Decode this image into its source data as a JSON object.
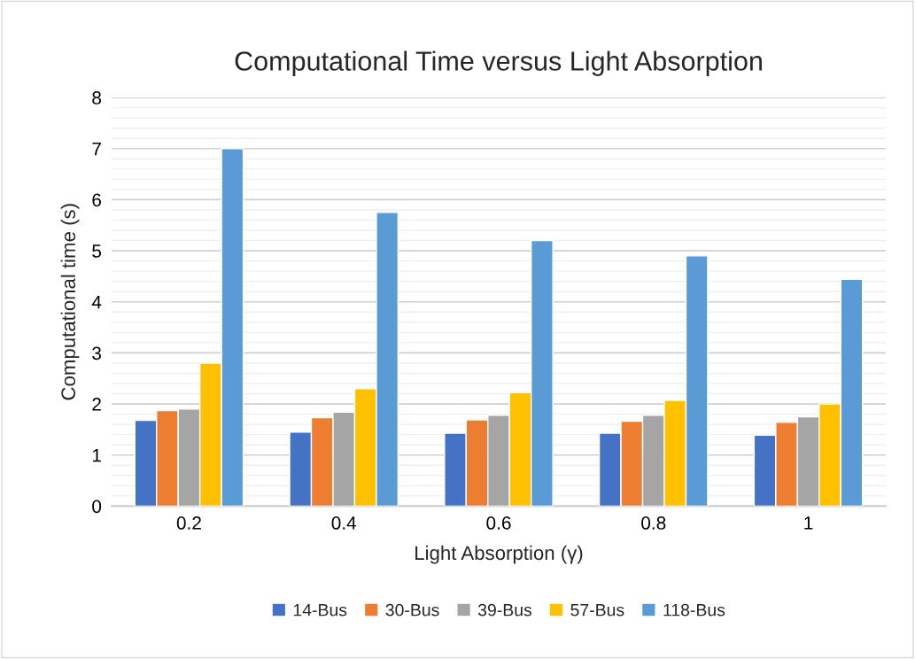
{
  "chart_data": {
    "type": "bar",
    "title": "Computational Time versus Light Absorption",
    "xlabel": "Light Absorption (γ)",
    "ylabel": "Computational time (s)",
    "categories": [
      "0.2",
      "0.4",
      "0.6",
      "0.8",
      "1"
    ],
    "series": [
      {
        "name": "14-Bus",
        "color": "#4472c4",
        "values": [
          1.68,
          1.45,
          1.43,
          1.43,
          1.39
        ]
      },
      {
        "name": "30-Bus",
        "color": "#ed7d31",
        "values": [
          1.87,
          1.73,
          1.69,
          1.66,
          1.64
        ]
      },
      {
        "name": "39-Bus",
        "color": "#a5a5a5",
        "values": [
          1.9,
          1.84,
          1.78,
          1.78,
          1.75
        ]
      },
      {
        "name": "57-Bus",
        "color": "#ffc000",
        "values": [
          2.8,
          2.3,
          2.22,
          2.07,
          2.0
        ]
      },
      {
        "name": "118-Bus",
        "color": "#5b9bd5",
        "values": [
          7.0,
          5.75,
          5.2,
          4.9,
          4.44
        ]
      }
    ],
    "ylim": [
      0,
      8
    ],
    "yticks": [
      0,
      {
        "value": 0.2,
        "label": null
      },
      {
        "value": 0.4,
        "label": null
      },
      {
        "value": 0.6,
        "label": null
      },
      {
        "value": 0.8,
        "label": null
      },
      1,
      {
        "value": 1.2,
        "label": null
      },
      {
        "value": 1.4,
        "label": null
      },
      {
        "value": 1.6,
        "label": null
      },
      {
        "value": 1.8,
        "label": null
      },
      2,
      {
        "value": 2.2,
        "label": null
      },
      {
        "value": 2.4,
        "label": null
      },
      {
        "value": 2.6,
        "label": null
      },
      {
        "value": 2.8,
        "label": null
      },
      3,
      {
        "value": 3.2,
        "label": null
      },
      {
        "value": 3.4,
        "label": null
      },
      {
        "value": 3.6,
        "label": null
      },
      {
        "value": 3.8,
        "label": null
      },
      4,
      {
        "value": 4.2,
        "label": null
      },
      {
        "value": 4.4,
        "label": null
      },
      {
        "value": 4.6,
        "label": null
      },
      {
        "value": 4.8,
        "label": null
      },
      5,
      {
        "value": 5.2,
        "label": null
      },
      {
        "value": 5.4,
        "label": null
      },
      {
        "value": 5.6,
        "label": null
      },
      {
        "value": 5.8,
        "label": null
      },
      6,
      {
        "value": 6.2,
        "label": null
      },
      {
        "value": 6.4,
        "label": null
      },
      {
        "value": 6.6,
        "label": null
      },
      {
        "value": 6.8,
        "label": null
      },
      7,
      {
        "value": 7.2,
        "label": null
      },
      {
        "value": 7.4,
        "label": null
      },
      {
        "value": 7.6,
        "label": null
      },
      {
        "value": 7.8,
        "label": null
      },
      8
    ],
    "grid": "y",
    "legend": "bottom"
  }
}
